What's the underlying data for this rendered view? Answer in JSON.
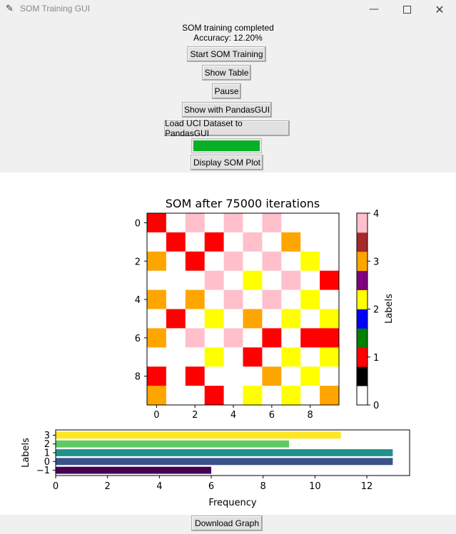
{
  "window": {
    "title": "SOM Training GUI",
    "icon": "feather-icon",
    "controls": [
      "minimize-icon",
      "maximize-icon",
      "close-icon"
    ]
  },
  "status": {
    "line1": "SOM training completed",
    "line2": "Accuracy: 12.20%"
  },
  "buttons": {
    "start": "Start SOM Training",
    "show_table": "Show Table",
    "pause": "Pause",
    "pandasgui": "Show with PandasGUI",
    "load_uci": "Load UCI Dataset to PandasGUI",
    "display_plot": "Display SOM Plot",
    "download": "Download Graph"
  },
  "progress": {
    "value": 1.0,
    "color": "#06b025"
  },
  "chart_data": [
    {
      "type": "heatmap",
      "title": "SOM after 75000 iterations",
      "x_ticks": [
        "0",
        "2",
        "4",
        "6",
        "8"
      ],
      "y_ticks": [
        "0",
        "2",
        "4",
        "6",
        "8"
      ],
      "grid": [
        [
          1,
          0,
          4,
          0,
          4,
          0,
          4,
          0,
          0,
          0
        ],
        [
          0,
          1,
          0,
          1,
          0,
          4,
          0,
          3,
          0,
          0
        ],
        [
          3,
          0,
          1,
          0,
          4,
          0,
          4,
          0,
          2,
          0
        ],
        [
          0,
          0,
          0,
          4,
          0,
          2,
          0,
          4,
          0,
          1
        ],
        [
          3,
          0,
          3,
          0,
          4,
          0,
          4,
          0,
          2,
          0
        ],
        [
          0,
          1,
          0,
          2,
          0,
          3,
          0,
          2,
          0,
          2
        ],
        [
          3,
          0,
          4,
          0,
          4,
          0,
          1,
          0,
          1,
          1
        ],
        [
          0,
          0,
          0,
          2,
          0,
          1,
          0,
          2,
          0,
          2
        ],
        [
          1,
          0,
          1,
          0,
          0,
          0,
          3,
          0,
          2,
          0
        ],
        [
          3,
          0,
          0,
          1,
          0,
          2,
          0,
          2,
          0,
          3
        ]
      ],
      "colorbar": {
        "label": "Labels",
        "ticks": [
          "0",
          "1",
          "2",
          "3",
          "4"
        ],
        "colors": [
          "#ffffff",
          "#000000",
          "#ff0000",
          "#008000",
          "#0000ff",
          "#ffff00",
          "#800080",
          "#ffa500",
          "#a52a2a",
          "#ffc0cb"
        ]
      },
      "value_colors": [
        "#ffffff",
        "#ff0000",
        "#ffff00",
        "#ffa500",
        "#ffc0cb"
      ]
    },
    {
      "type": "bar",
      "orientation": "horizontal",
      "categories": [
        "−1",
        "0",
        "1",
        "2",
        "3"
      ],
      "values": [
        6,
        13,
        13,
        9,
        11
      ],
      "colors": [
        "#440154",
        "#3b528b",
        "#21918c",
        "#5ec962",
        "#fde725"
      ],
      "xlabel": "Frequency",
      "ylabel": "Labels",
      "x_ticks": [
        "0",
        "2",
        "4",
        "6",
        "8",
        "10",
        "12"
      ],
      "xlim": [
        0,
        13.65
      ]
    }
  ]
}
